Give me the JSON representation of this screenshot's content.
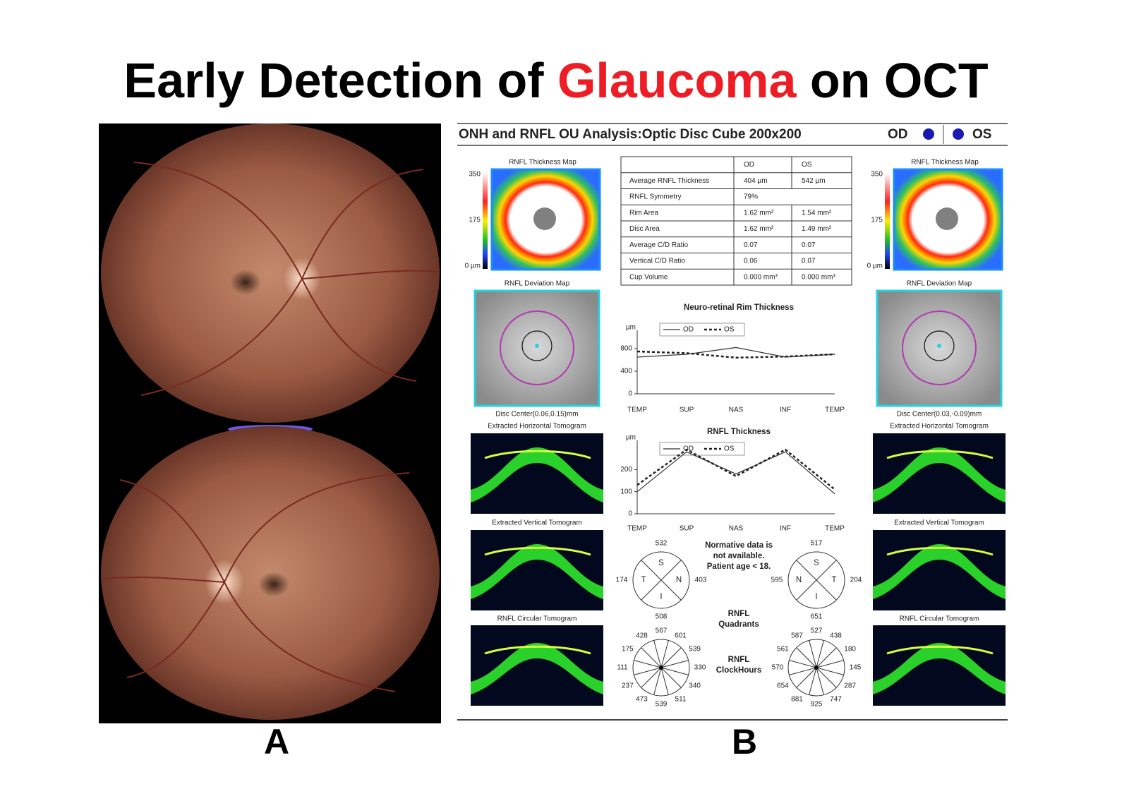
{
  "title": {
    "before": "Early Detection of ",
    "highlight": "Glaucoma",
    "after": " on OCT",
    "highlight_color": "#ee1c25"
  },
  "panel_a": {
    "label": "A"
  },
  "panel_b": {
    "label": "B",
    "header": "ONH and RNFL OU Analysis:Optic Disc Cube 200x200",
    "od": "OD",
    "os": "OS",
    "eyes": [
      {
        "thickness_map": "RNFL Thickness Map",
        "scale": [
          "350",
          "175",
          "0 µm"
        ],
        "deviation_map": "RNFL Deviation Map",
        "disc_center": "Disc Center(0.06,0.15)mm",
        "horizontal": "Extracted Horizontal Tomogram",
        "vertical": "Extracted Vertical Tomogram",
        "circular": "RNFL Circular Tomogram"
      },
      {
        "thickness_map": "RNFL Thickness Map",
        "scale": [
          "350",
          "175",
          "0 µm"
        ],
        "deviation_map": "RNFL Deviation Map",
        "disc_center": "Disc Center(0.03,-0.09)mm",
        "horizontal": "Extracted Horizontal Tomogram",
        "vertical": "Extracted Vertical Tomogram",
        "circular": "RNFL Circular Tomogram"
      }
    ],
    "table": {
      "header": [
        "",
        "OD",
        "OS"
      ],
      "rows": [
        [
          "Average RNFL Thickness",
          "404 µm",
          "542 µm"
        ],
        [
          "RNFL Symmetry",
          "79%"
        ],
        [
          "Rim Area",
          "1.62 mm²",
          "1.54 mm²"
        ],
        [
          "Disc Area",
          "1.62 mm²",
          "1.49 mm²"
        ],
        [
          "Average C/D Ratio",
          "0.07",
          "0.07"
        ],
        [
          "Vertical C/D Ratio",
          "0.06",
          "0.07"
        ],
        [
          "Cup Volume",
          "0.000 mm³",
          "0.000 mm³"
        ]
      ]
    },
    "normative_note": [
      "Normative data is",
      "not available.",
      "Patient age < 18."
    ],
    "quadrants_label": [
      "RNFL",
      "Quadrants"
    ],
    "clockhours_label": [
      "RNFL",
      "ClockHours"
    ],
    "quadrants": [
      {
        "letters": [
          "S",
          "T",
          "N",
          "I"
        ],
        "values": [
          532,
          174,
          403,
          508
        ]
      },
      {
        "letters": [
          "S",
          "N",
          "T",
          "I"
        ],
        "values": [
          517,
          595,
          204,
          651
        ]
      }
    ],
    "clockhours": [
      [
        567,
        601,
        539,
        330,
        340,
        511,
        539,
        473,
        237,
        111,
        175,
        428
      ],
      [
        527,
        438,
        180,
        145,
        287,
        747,
        925,
        881,
        654,
        570,
        561,
        587
      ]
    ]
  },
  "chart_data": [
    {
      "type": "line",
      "title": "Neuro-retinal Rim Thickness",
      "y_label": "µm",
      "categories": [
        "TEMP",
        "SUP",
        "NAS",
        "INF",
        "TEMP"
      ],
      "series": [
        {
          "name": "OD",
          "color": "#333333",
          "line_style": "solid",
          "values": [
            650,
            700,
            820,
            650,
            700
          ]
        },
        {
          "name": "OS",
          "color": "#222222",
          "line_style": "dotted",
          "values": [
            750,
            720,
            640,
            660,
            700
          ]
        }
      ],
      "ylim": [
        0,
        1000
      ],
      "yticks": [
        0,
        400,
        800
      ]
    },
    {
      "type": "line",
      "title": "RNFL Thickness",
      "y_label": "µm",
      "categories": [
        "TEMP",
        "SUP",
        "NAS",
        "INF",
        "TEMP"
      ],
      "series": [
        {
          "name": "OD",
          "color": "#333333",
          "line_style": "solid",
          "values": [
            100,
            280,
            180,
            280,
            90
          ]
        },
        {
          "name": "OS",
          "color": "#222222",
          "line_style": "dotted",
          "values": [
            130,
            290,
            170,
            290,
            110
          ]
        }
      ],
      "ylim": [
        0,
        300
      ],
      "yticks": [
        0,
        100,
        200
      ]
    }
  ]
}
